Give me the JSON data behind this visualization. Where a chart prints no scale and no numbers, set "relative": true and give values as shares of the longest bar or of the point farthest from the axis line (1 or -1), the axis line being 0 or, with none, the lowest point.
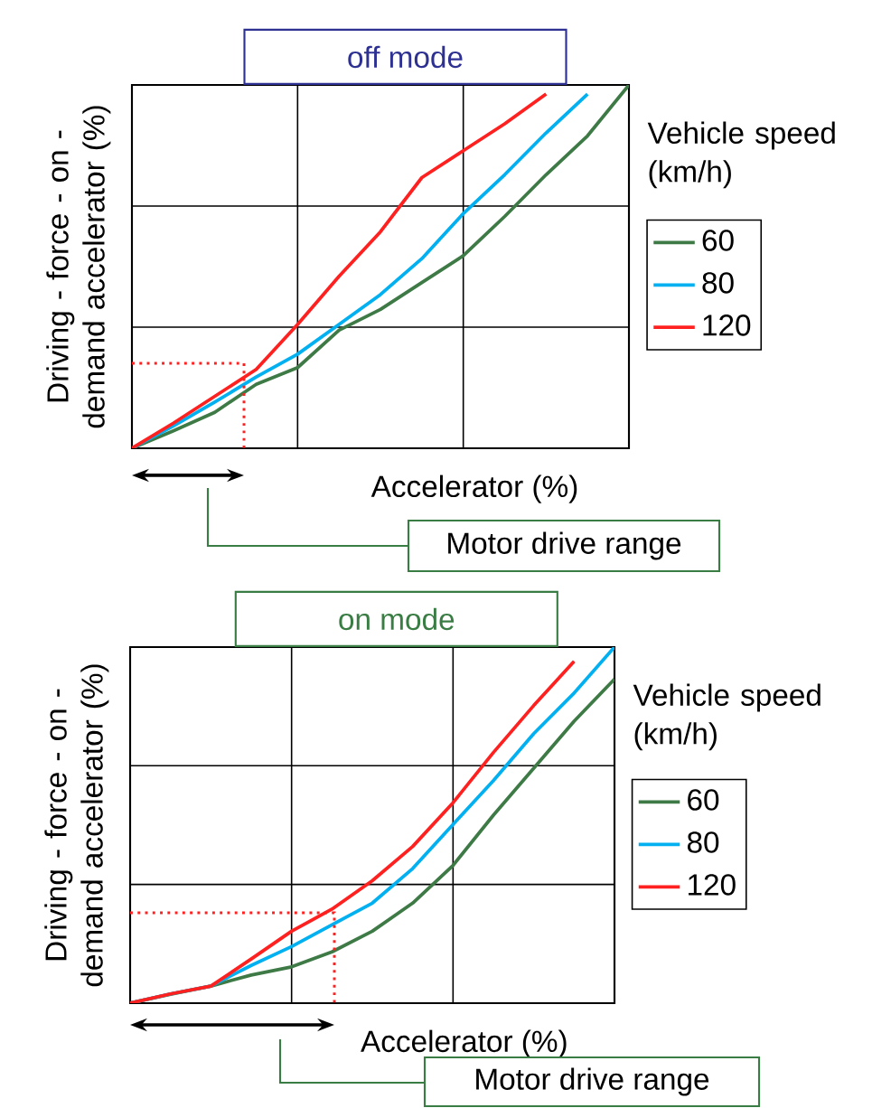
{
  "chart_data": [
    {
      "type": "line",
      "relative": true,
      "title": "off mode",
      "xlabel": "Accelerator (%)",
      "ylabel": "Driving - force - on - demand accelerator (%)",
      "legend_title": "Vehicle speed (km/h)",
      "legend": "right",
      "grid": true,
      "tick_labels": false,
      "marker": "none",
      "line_style": "solid",
      "categories": [
        null,
        null,
        null,
        null,
        null,
        null,
        null,
        null,
        null,
        null,
        null,
        null,
        null
      ],
      "series": [
        {
          "name": "60",
          "color": "#3e7a46",
          "values": [
            0,
            0.048,
            0.099,
            0.176,
            0.222,
            0.325,
            0.382,
            0.456,
            0.53,
            0.638,
            0.753,
            0.86,
            1
          ]
        },
        {
          "name": "80",
          "color": "#00b0f0",
          "values": [
            0,
            0.061,
            0.127,
            0.196,
            0.259,
            0.341,
            0.423,
            0.522,
            0.646,
            0.753,
            0.868,
            0.975,
            null
          ]
        },
        {
          "name": "120",
          "color": "#ff2020",
          "values": [
            0,
            0.069,
            0.143,
            0.217,
            0.341,
            0.473,
            0.596,
            0.745,
            0.819,
            0.893,
            0.975,
            null,
            null
          ]
        }
      ],
      "annotations": [
        "Motor drive range"
      ]
    },
    {
      "type": "line",
      "relative": true,
      "title": "on mode",
      "xlabel": "Accelerator (%)",
      "ylabel": "Driving - force - on - demand accelerator (%)",
      "legend_title": "Vehicle speed (km/h)",
      "legend": "right",
      "grid": true,
      "tick_labels": false,
      "marker": "none",
      "line_style": "solid",
      "categories": [
        null,
        null,
        null,
        null,
        null,
        null,
        null,
        null,
        null,
        null,
        null,
        null,
        null
      ],
      "series": [
        {
          "name": "60",
          "color": "#3e7a46",
          "values": [
            0,
            0.025,
            0.048,
            0.079,
            0.102,
            0.144,
            0.202,
            0.281,
            0.387,
            0.528,
            0.66,
            0.792,
            0.91
          ]
        },
        {
          "name": "80",
          "color": "#00b0f0",
          "values": [
            0,
            0.026,
            0.048,
            0.106,
            0.159,
            0.22,
            0.281,
            0.378,
            0.502,
            0.625,
            0.757,
            0.871,
            1
          ]
        },
        {
          "name": "120",
          "color": "#ff2020",
          "values": [
            0,
            0.026,
            0.048,
            0.124,
            0.202,
            0.264,
            0.344,
            0.44,
            0.563,
            0.704,
            0.836,
            0.96,
            null
          ]
        }
      ],
      "annotations": [
        "Motor drive range"
      ]
    }
  ]
}
